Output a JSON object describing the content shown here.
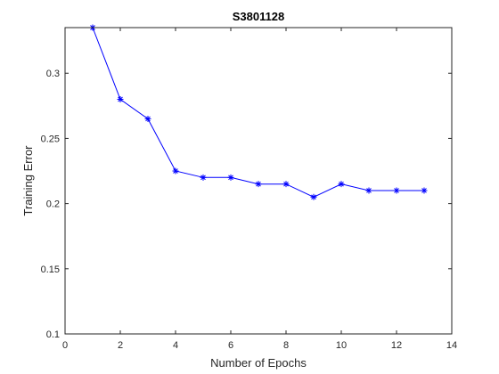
{
  "chart_data": {
    "type": "line",
    "title": "S3801128",
    "xlabel": "Number of Epochs",
    "ylabel": "Training Error",
    "xlim": [
      0,
      14
    ],
    "ylim": [
      0.1,
      0.335
    ],
    "xticks": [
      0,
      2,
      4,
      6,
      8,
      10,
      12,
      14
    ],
    "xtick_labels": [
      "0",
      "2",
      "4",
      "6",
      "8",
      "10",
      "12",
      "14"
    ],
    "yticks": [
      0.1,
      0.15,
      0.2,
      0.25,
      0.3
    ],
    "ytick_labels": [
      "0.1",
      "0.15",
      "0.2",
      "0.25",
      "0.3"
    ],
    "grid": false,
    "marker": "asterisk",
    "color": "#0000ff",
    "x": [
      1,
      2,
      3,
      4,
      5,
      6,
      7,
      8,
      9,
      10,
      11,
      12,
      13
    ],
    "series": [
      {
        "values": [
          0.335,
          0.28,
          0.265,
          0.225,
          0.22,
          0.22,
          0.215,
          0.215,
          0.205,
          0.215,
          0.21,
          0.21,
          0.21
        ]
      }
    ]
  }
}
